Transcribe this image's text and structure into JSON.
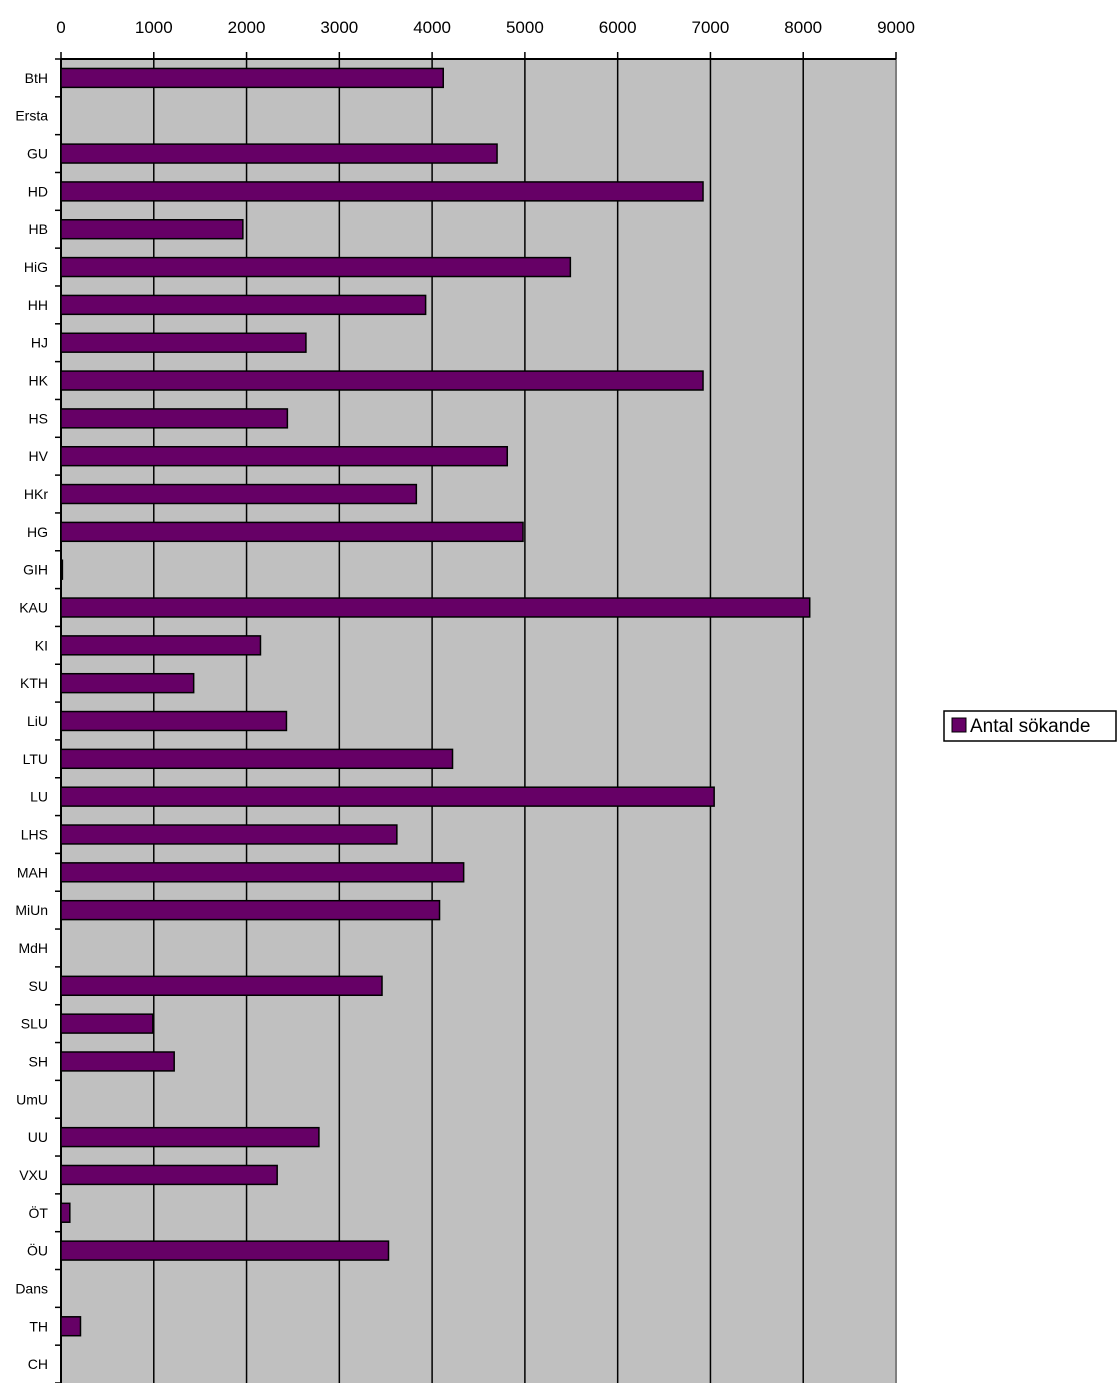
{
  "chart_data": {
    "type": "bar",
    "orientation": "horizontal",
    "categories": [
      "BtH",
      "Ersta",
      "GU",
      "HD",
      "HB",
      "HiG",
      "HH",
      "HJ",
      "HK",
      "HS",
      "HV",
      "HKr",
      "HG",
      "GIH",
      "KAU",
      "KI",
      "KTH",
      "LiU",
      "LTU",
      "LU",
      "LHS",
      "MAH",
      "MiUn",
      "MdH",
      "SU",
      "SLU",
      "SH",
      "UmU",
      "UU",
      "VXU",
      "ÖT",
      "ÖU",
      "Dans",
      "TH",
      "CH"
    ],
    "series": [
      {
        "name": "Antal sökande",
        "values": [
          4120,
          0,
          4700,
          6920,
          1960,
          5490,
          3930,
          2640,
          6920,
          2440,
          4810,
          3830,
          4980,
          15,
          8070,
          2150,
          1430,
          2430,
          4220,
          7040,
          3620,
          4340,
          4080,
          0,
          3460,
          990,
          1220,
          0,
          2780,
          2330,
          95,
          3530,
          0,
          210,
          0
        ]
      }
    ],
    "xlim": [
      0,
      9000
    ],
    "x_ticks": [
      "0",
      "1000",
      "2000",
      "3000",
      "4000",
      "5000",
      "6000",
      "7000",
      "8000",
      "9000"
    ],
    "x_axis_position": "top",
    "grid": true,
    "legend": {
      "position": "right",
      "entries": [
        "Antal sökande"
      ]
    },
    "colors": {
      "bar_fill": "#660066",
      "bar_stroke": "#000000",
      "plot_background": "#c0c0c0",
      "gridline": "#000000"
    }
  }
}
